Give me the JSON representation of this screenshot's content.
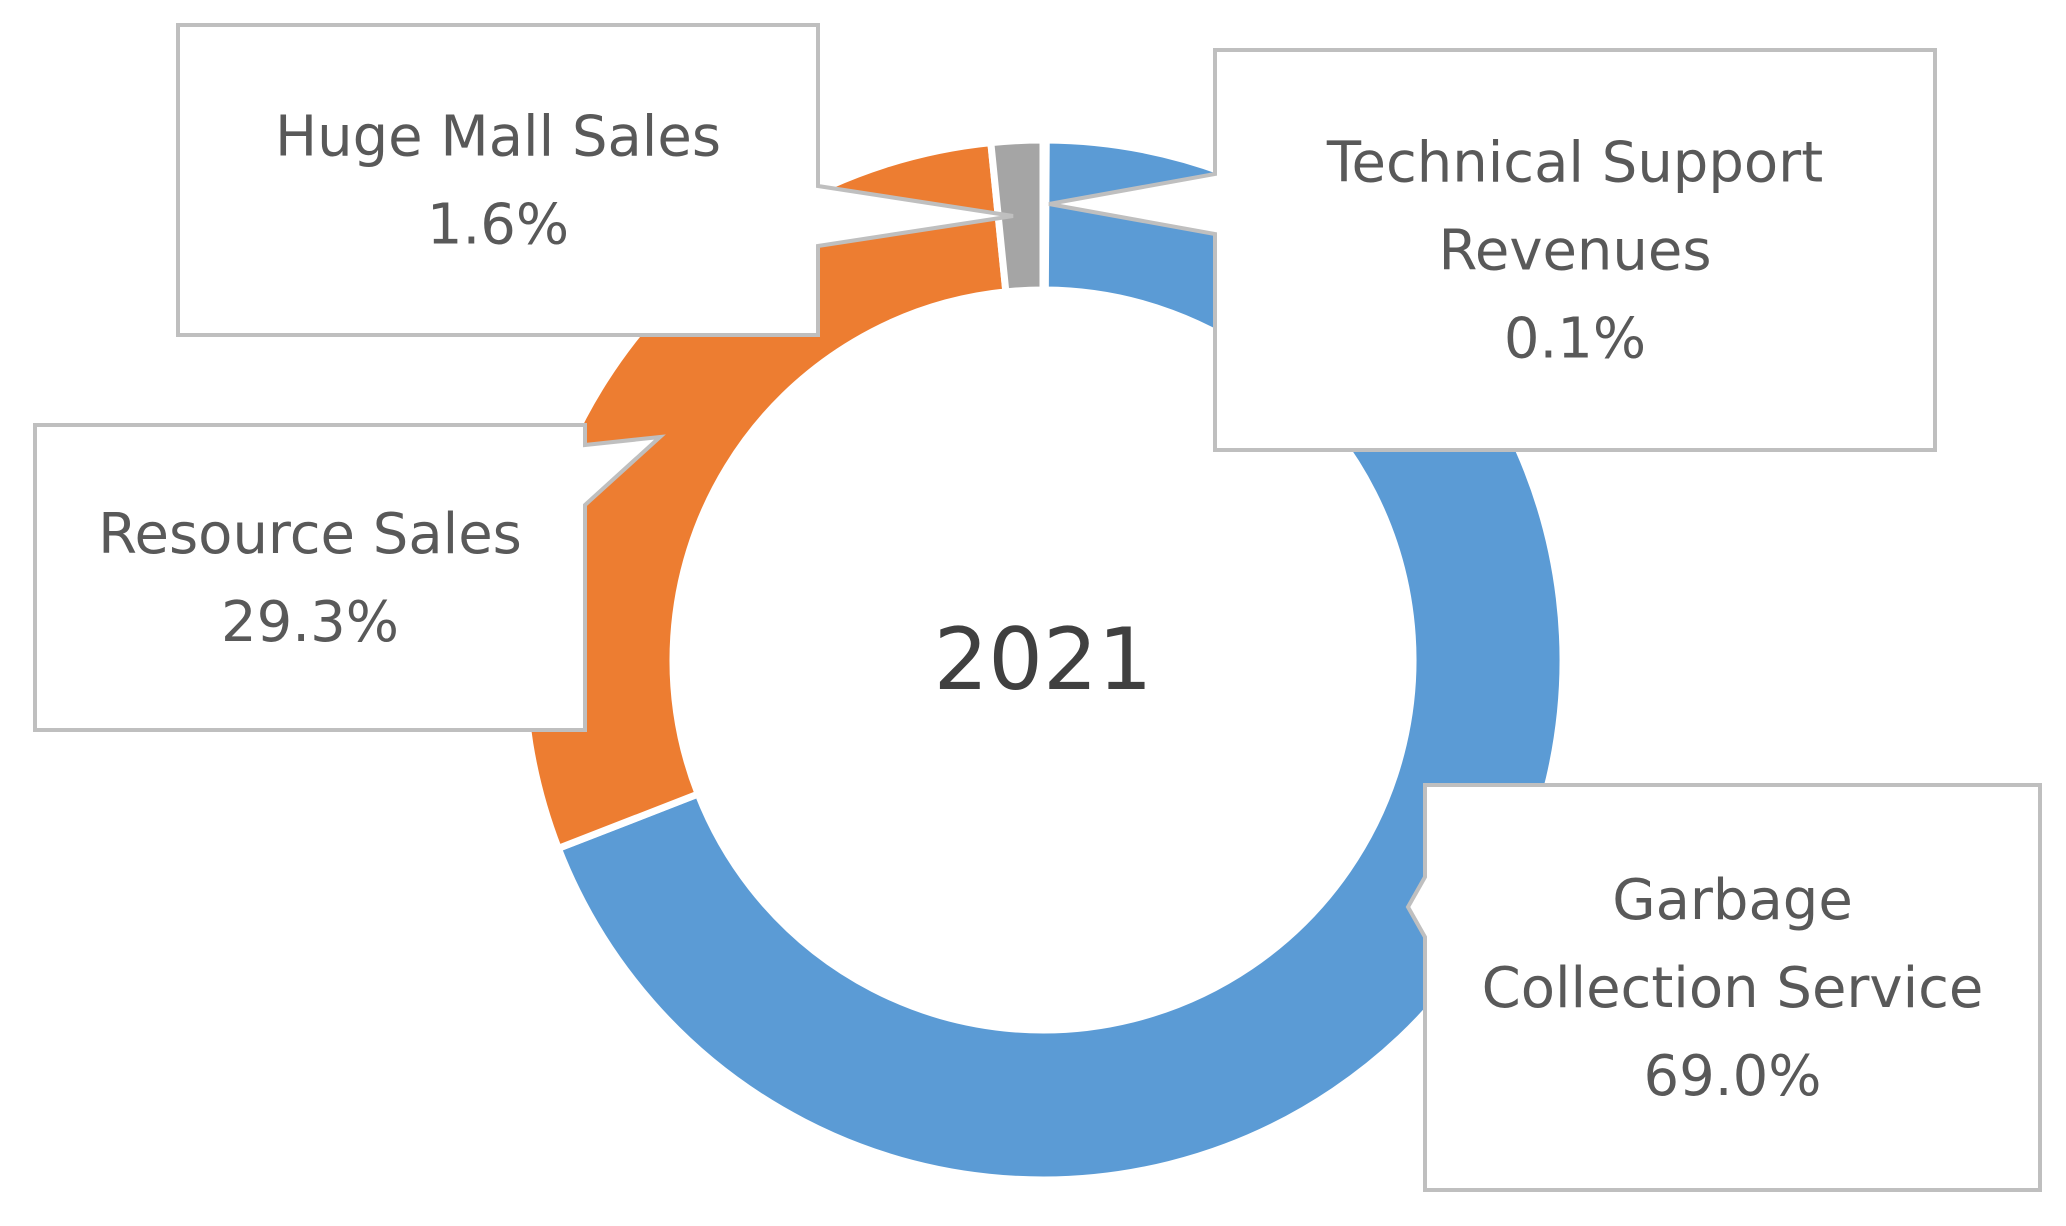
{
  "chart_data": {
    "type": "pie",
    "variant": "doughnut",
    "center_label": "2021",
    "slices": [
      {
        "name": "Technical Support Revenues",
        "value": 0.1,
        "value_label": "0.1%",
        "color": "#5b9bd5"
      },
      {
        "name": "Garbage Collection Service",
        "value": 69.0,
        "value_label": "69.0%",
        "color": "#5b9bd5"
      },
      {
        "name": "Resource Sales",
        "value": 29.3,
        "value_label": "29.3%",
        "color": "#ed7d31"
      },
      {
        "name": "Huge Mall Sales",
        "value": 1.6,
        "value_label": "1.6%",
        "color": "#a5a5a5"
      }
    ],
    "label_lines": {
      "Technical Support Revenues": [
        "Technical Support",
        "Revenues"
      ],
      "Garbage Collection Service": [
        "Garbage",
        "Collection Service"
      ],
      "Resource Sales": [
        "Resource  Sales"
      ],
      "Huge Mall Sales": [
        "Huge Mall Sales"
      ]
    },
    "legend": "none",
    "data_labels": "callouts"
  }
}
